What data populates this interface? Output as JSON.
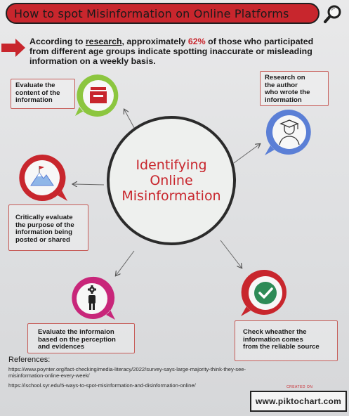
{
  "header": {
    "title": "How to spot Misinformation on Online Platforms",
    "accent_color": "#c8262d"
  },
  "intro": {
    "prefix": "According to ",
    "link_text": "research",
    "middle": ", approximately ",
    "percent": "62%",
    "line1_suffix": " of those who participated",
    "line2": "from different age groups indicate spotting inaccurate or misleading",
    "line3": "information on a weekly basis."
  },
  "center": {
    "lines": [
      "Identifying",
      "Online",
      "Misinformation"
    ]
  },
  "steps": [
    {
      "icon": "tray-icon",
      "lines": [
        "Evaluate the",
        "content of the",
        "information"
      ]
    },
    {
      "icon": "researcher-icon",
      "lines": [
        "Research on",
        "the author",
        "who wrote the",
        "information"
      ]
    },
    {
      "icon": "mountain-flag-icon",
      "lines": [
        "Critically evaluate",
        "the purpose of the",
        "information being",
        "posted or shared"
      ]
    },
    {
      "icon": "check-icon",
      "lines": [
        "Check wheather the",
        "information comes",
        "from the reliable source"
      ]
    },
    {
      "icon": "person-gear-icon",
      "lines": [
        "Evaluate the informaion",
        "based on the perception",
        "and evidences"
      ]
    }
  ],
  "references": {
    "title": "References:",
    "links": [
      [
        "https://www.poynter.org/fact-checking/media-literacy/2022/survey-says-large-majority-think-they-see-",
        "misinformation-online-every-week/"
      ],
      [
        "https://ischool.syr.edu/5-ways-to-spot-misinformation-and-disinformation-online/"
      ]
    ]
  },
  "badge": {
    "text": "www.piktochart.com",
    "tag": "CREATED ON"
  }
}
